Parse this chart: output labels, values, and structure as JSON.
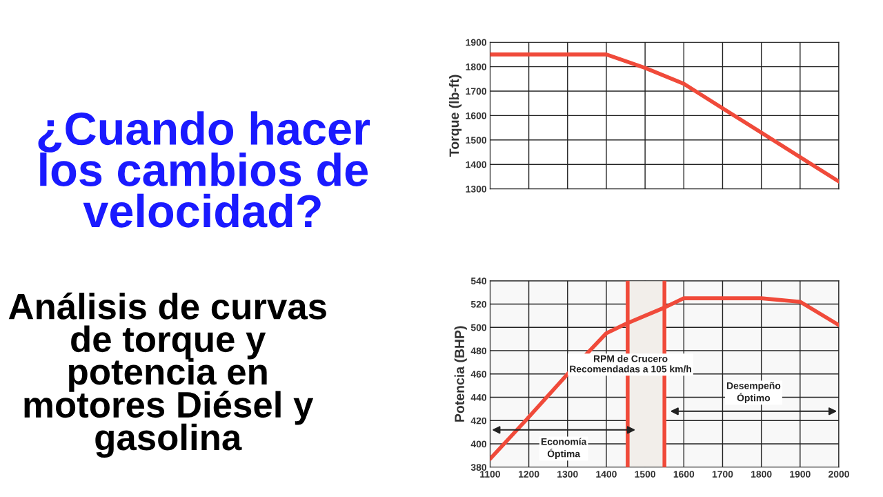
{
  "chart_data": [
    {
      "type": "line",
      "title": "¿Cuando hacer los cambios de velocidad?",
      "subtitle": "Análisis de curvas de torque y potencia en motores Diésel y gasolina",
      "ylabel": "Torque (lb-ft)",
      "x": [
        1100,
        1200,
        1300,
        1400,
        1500,
        1600,
        1700,
        1800,
        1900,
        2000
      ],
      "series": [
        {
          "color": "#f04a3a",
          "values": [
            1850,
            1850,
            1850,
            1850,
            1795,
            1730,
            1630,
            1530,
            1430,
            1330
          ]
        }
      ],
      "xlim": [
        1100,
        2000
      ],
      "ylim": [
        1300,
        1900
      ],
      "xticks": [
        {
          "value": 1100,
          "label": null
        },
        {
          "value": 1200,
          "label": null
        },
        {
          "value": 1300,
          "label": null
        },
        {
          "value": 1400,
          "label": null
        },
        {
          "value": 1500,
          "label": null
        },
        {
          "value": 1600,
          "label": null
        },
        {
          "value": 1700,
          "label": null
        },
        {
          "value": 1800,
          "label": null
        },
        {
          "value": 1900,
          "label": null
        },
        {
          "value": 2000,
          "label": null
        }
      ],
      "yticks": [
        1300,
        1400,
        1500,
        1600,
        1700,
        1800,
        1900
      ],
      "grid": true,
      "tick_labels": "y"
    },
    {
      "type": "line",
      "ylabel": "Potencia (BHP)",
      "x": [
        1100,
        1200,
        1300,
        1400,
        1450,
        1500,
        1550,
        1600,
        1700,
        1800,
        1900,
        2000
      ],
      "series": [
        {
          "color": "#f04a3a",
          "values": [
            387,
            423,
            460,
            495,
            503,
            510,
            517,
            525,
            525,
            525,
            522,
            502
          ]
        }
      ],
      "xlim": [
        1100,
        2000
      ],
      "ylim": [
        380,
        540
      ],
      "xticks": [
        1100,
        1200,
        1300,
        1400,
        1500,
        1600,
        1700,
        1800,
        1900,
        2000
      ],
      "yticks": [
        380,
        400,
        420,
        440,
        460,
        480,
        500,
        520,
        540
      ],
      "grid": true,
      "ref_lines": [
        {
          "axis": "x",
          "value": 1455,
          "color": "#f04a3a"
        },
        {
          "axis": "x",
          "value": 1550,
          "color": "#f04a3a"
        }
      ],
      "bands": [
        {
          "axis": "x",
          "from": 1455,
          "to": 1550,
          "color": "#f2eeea",
          "label": "RPM de Crucero\nRecomendadas a 105 km/h"
        },
        {
          "axis": "x",
          "from": 1100,
          "to": 1480,
          "color": "#f8f8f8",
          "label": "Economía\nÓptima"
        },
        {
          "axis": "x",
          "from": 1560,
          "to": 2000,
          "color": "#f8f8f8",
          "label": "Desempeño\nÓptimo"
        }
      ]
    }
  ]
}
